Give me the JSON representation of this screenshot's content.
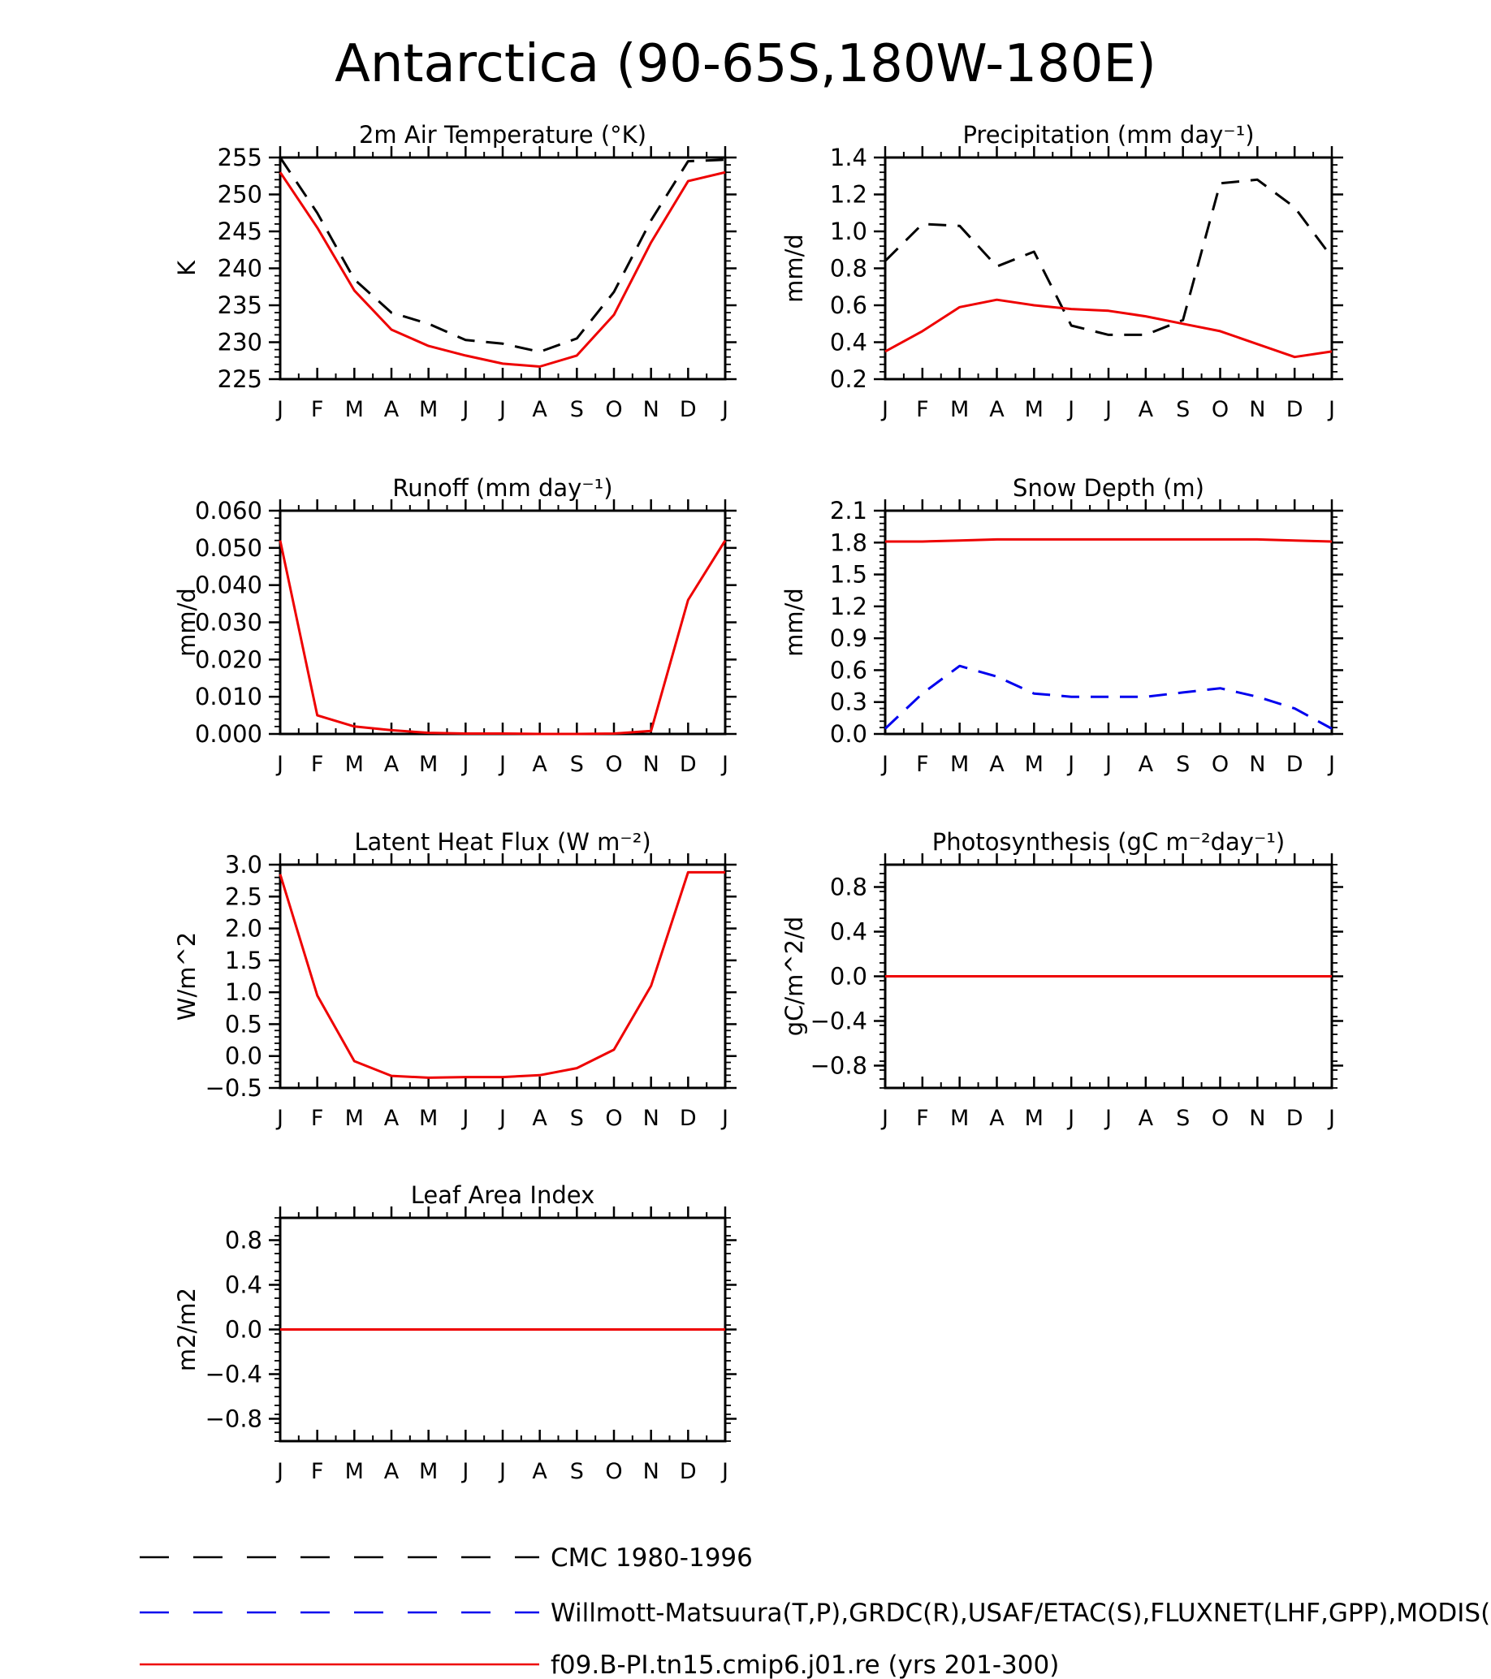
{
  "title": "Antarctica (90-65S,180W-180E)",
  "month_labels": [
    "J",
    "F",
    "M",
    "A",
    "M",
    "J",
    "J",
    "A",
    "S",
    "O",
    "N",
    "D",
    "J"
  ],
  "colors": {
    "obs_black": "#000000",
    "obs_blue": "#0000ee",
    "model_red": "#ee0000"
  },
  "legend": [
    {
      "label": "CMC 1980-1996",
      "style": "dashed",
      "color": "#000000"
    },
    {
      "label": "Willmott-Matsuura(T,P),GRDC(R),USAF/ETAC(S),FLUXNET(LHF,GPP),MODIS(",
      "style": "dashed",
      "color": "#0000ee"
    },
    {
      "label": "f09.B-PI.tn15.cmip6.j01.re (yrs 201-300)",
      "style": "solid",
      "color": "#ee0000"
    }
  ],
  "chart_data": [
    {
      "type": "line",
      "title": "2m Air Temperature (°K)",
      "ylabel": "K",
      "ylim": [
        225,
        255
      ],
      "yticks": [
        "225",
        "230",
        "235",
        "240",
        "245",
        "250",
        "255"
      ],
      "x": [
        "J",
        "F",
        "M",
        "A",
        "M",
        "J",
        "J",
        "A",
        "S",
        "O",
        "N",
        "D",
        "J"
      ],
      "series": [
        {
          "style": "dashed",
          "color": "#000000",
          "values": [
            255.0,
            247.5,
            238.5,
            234.0,
            232.5,
            230.3,
            229.8,
            228.7,
            230.5,
            236.8,
            246.5,
            254.5,
            254.7
          ]
        },
        {
          "style": "solid",
          "color": "#ee0000",
          "values": [
            253.0,
            245.5,
            237.0,
            231.7,
            229.5,
            228.2,
            227.1,
            226.7,
            228.2,
            233.7,
            243.5,
            251.8,
            253.0
          ]
        }
      ]
    },
    {
      "type": "line",
      "title": "Precipitation (mm day⁻¹)",
      "ylabel": "mm/d",
      "ylim": [
        0.2,
        1.4
      ],
      "yticks": [
        "0.2",
        "0.4",
        "0.6",
        "0.8",
        "1.0",
        "1.2",
        "1.4"
      ],
      "x": [
        "J",
        "F",
        "M",
        "A",
        "M",
        "J",
        "J",
        "A",
        "S",
        "O",
        "N",
        "D",
        "J"
      ],
      "series": [
        {
          "style": "dashed",
          "color": "#000000",
          "values": [
            0.84,
            1.04,
            1.03,
            0.81,
            0.89,
            0.49,
            0.44,
            0.44,
            0.52,
            1.26,
            1.28,
            1.13,
            0.86
          ]
        },
        {
          "style": "solid",
          "color": "#ee0000",
          "values": [
            0.35,
            0.46,
            0.59,
            0.63,
            0.6,
            0.58,
            0.57,
            0.54,
            0.5,
            0.46,
            0.39,
            0.32,
            0.35
          ]
        }
      ]
    },
    {
      "type": "line",
      "title": "Runoff (mm day⁻¹)",
      "ylabel": "mm/d",
      "ylim": [
        0,
        0.06
      ],
      "yticks": [
        "0.000",
        "0.010",
        "0.020",
        "0.030",
        "0.040",
        "0.050",
        "0.060"
      ],
      "x": [
        "J",
        "F",
        "M",
        "A",
        "M",
        "J",
        "J",
        "A",
        "S",
        "O",
        "N",
        "D",
        "J"
      ],
      "series": [
        {
          "style": "solid",
          "color": "#ee0000",
          "values": [
            0.052,
            0.005,
            0.002,
            0.001,
            0.0003,
            0.0001,
            0.0001,
            0.0,
            0.0,
            0.0001,
            0.0008,
            0.036,
            0.052
          ]
        }
      ]
    },
    {
      "type": "line",
      "title": "Snow Depth (m)",
      "ylabel": "mm/d",
      "ylim": [
        0,
        2.1
      ],
      "yticks": [
        "0.0",
        "0.3",
        "0.6",
        "0.9",
        "1.2",
        "1.5",
        "1.8",
        "2.1"
      ],
      "x": [
        "J",
        "F",
        "M",
        "A",
        "M",
        "J",
        "J",
        "A",
        "S",
        "O",
        "N",
        "D",
        "J"
      ],
      "series": [
        {
          "style": "dashed",
          "color": "#000000",
          "values": [
            0.0,
            0.0,
            0.0,
            0.0,
            0.0,
            0.0,
            0.0,
            0.0,
            0.0,
            0.0,
            0.0,
            0.0,
            0.0
          ]
        },
        {
          "style": "dashed",
          "color": "#0000ee",
          "values": [
            0.05,
            0.38,
            0.64,
            0.54,
            0.38,
            0.35,
            0.35,
            0.35,
            0.39,
            0.43,
            0.35,
            0.24,
            0.05
          ]
        },
        {
          "style": "solid",
          "color": "#ee0000",
          "values": [
            1.81,
            1.81,
            1.82,
            1.83,
            1.83,
            1.83,
            1.83,
            1.83,
            1.83,
            1.83,
            1.83,
            1.82,
            1.81
          ]
        }
      ]
    },
    {
      "type": "line",
      "title": "Latent Heat Flux (W m⁻²)",
      "ylabel": "W/m^2",
      "ylim": [
        -0.5,
        3.0
      ],
      "yticks": [
        "−0.5",
        "0.0",
        "0.5",
        "1.0",
        "1.5",
        "2.0",
        "2.5",
        "3.0"
      ],
      "x": [
        "J",
        "F",
        "M",
        "A",
        "M",
        "J",
        "J",
        "A",
        "S",
        "O",
        "N",
        "D",
        "J"
      ],
      "series": [
        {
          "style": "solid",
          "color": "#ee0000",
          "values": [
            2.85,
            0.95,
            -0.08,
            -0.31,
            -0.34,
            -0.33,
            -0.33,
            -0.3,
            -0.19,
            0.1,
            1.1,
            2.88,
            2.88
          ]
        }
      ]
    },
    {
      "type": "line",
      "title": "Photosynthesis (gC m⁻²day⁻¹)",
      "ylabel": "gC/m^2/d",
      "ylim": [
        -1.0,
        1.0
      ],
      "yticks": [
        "−0.8",
        "−0.4",
        "0.0",
        "0.4",
        "0.8"
      ],
      "x": [
        "J",
        "F",
        "M",
        "A",
        "M",
        "J",
        "J",
        "A",
        "S",
        "O",
        "N",
        "D",
        "J"
      ],
      "series": [
        {
          "style": "solid",
          "color": "#ee0000",
          "values": [
            0,
            0,
            0,
            0,
            0,
            0,
            0,
            0,
            0,
            0,
            0,
            0,
            0
          ]
        }
      ]
    },
    {
      "type": "line",
      "title": "Leaf Area Index",
      "ylabel": "m2/m2",
      "ylim": [
        -1.0,
        1.0
      ],
      "yticks": [
        "−0.8",
        "−0.4",
        "0.0",
        "0.4",
        "0.8"
      ],
      "x": [
        "J",
        "F",
        "M",
        "A",
        "M",
        "J",
        "J",
        "A",
        "S",
        "O",
        "N",
        "D",
        "J"
      ],
      "series": [
        {
          "style": "solid",
          "color": "#ee0000",
          "values": [
            0,
            0,
            0,
            0,
            0,
            0,
            0,
            0,
            0,
            0,
            0,
            0,
            0
          ]
        }
      ]
    }
  ]
}
